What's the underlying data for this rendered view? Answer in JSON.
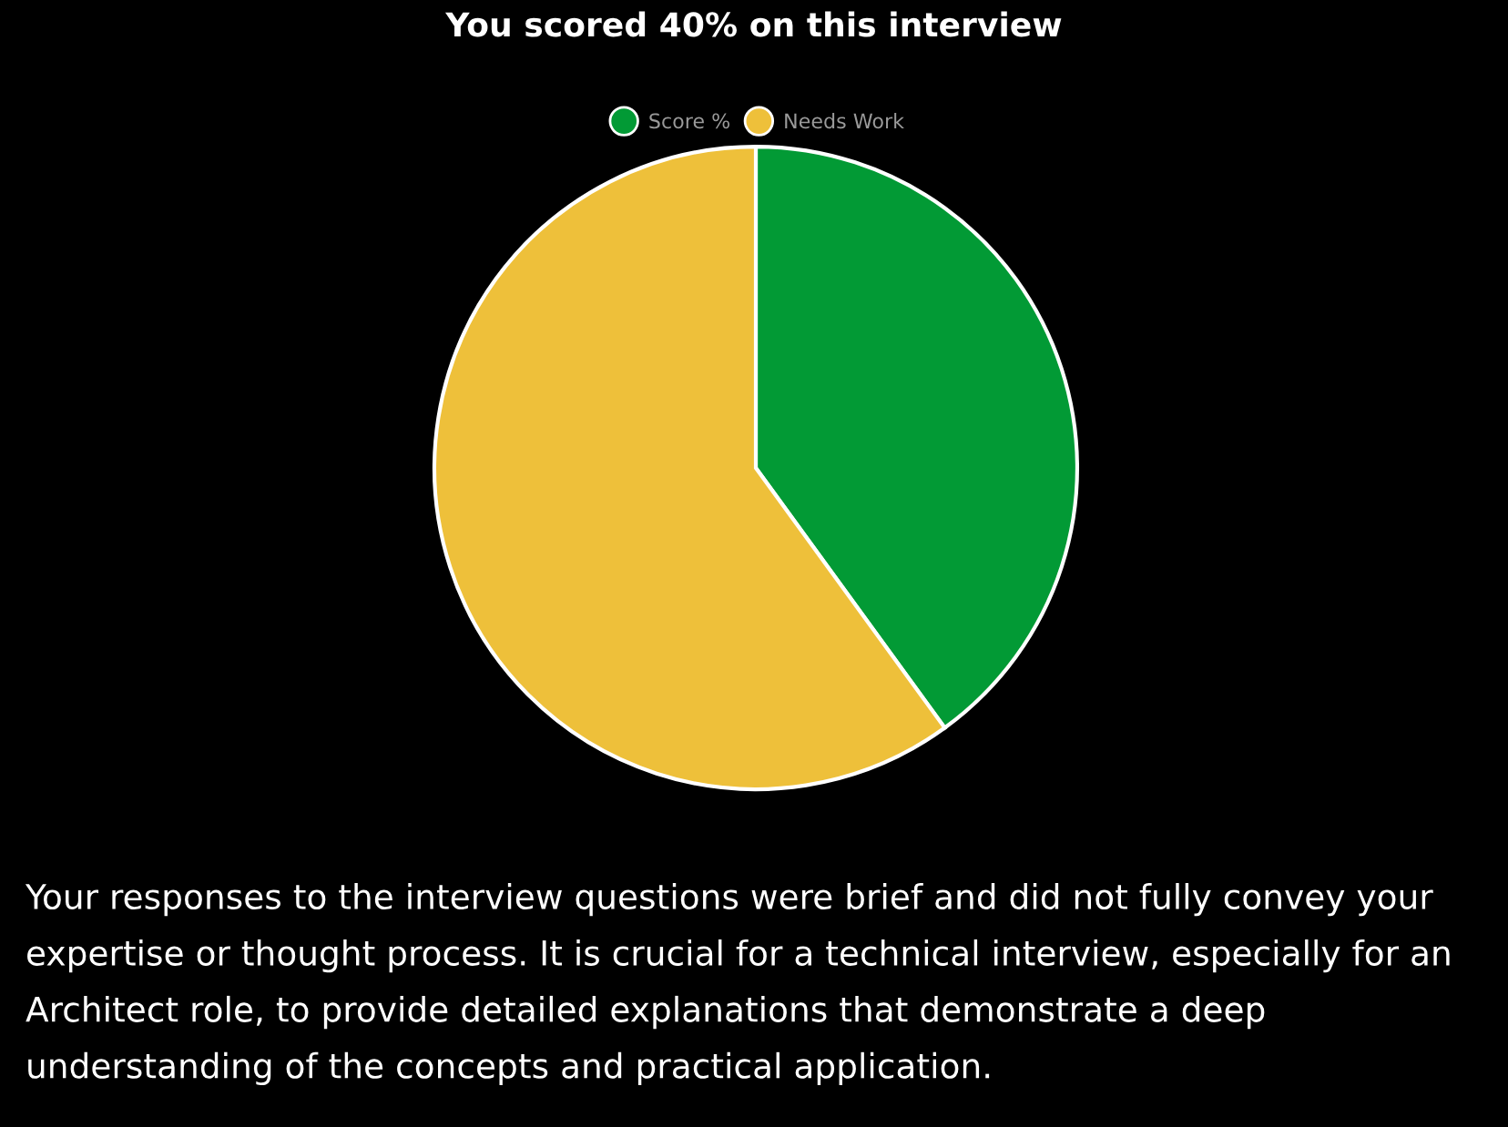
{
  "chart_data": {
    "type": "pie",
    "title": "You scored 40% on this interview",
    "categories": [
      "Score %",
      "Needs Work"
    ],
    "values": [
      40,
      60
    ],
    "colors": [
      "#029a35",
      "#eec03a"
    ],
    "legend": "top",
    "annotations": [
      "Your responses to the interview questions were brief and did not fully convey your expertise or thought process. It is crucial for a technical interview, especially for an Architect role, to provide detailed explanations that demonstrate a deep understanding of the concepts and practical application."
    ]
  }
}
